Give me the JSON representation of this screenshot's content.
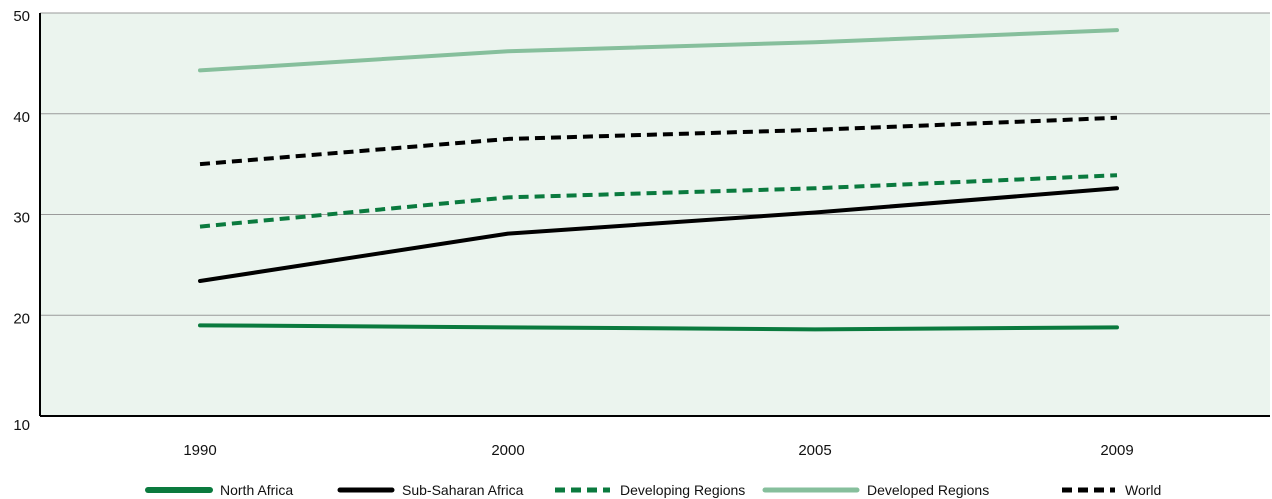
{
  "chart_data": {
    "type": "line",
    "title": "",
    "xlabel": "",
    "ylabel": "",
    "categories": [
      "1990",
      "2000",
      "2005",
      "2009"
    ],
    "ylim": [
      10,
      50
    ],
    "yticks": [
      10,
      20,
      30,
      40,
      50
    ],
    "grid": true,
    "legend_position": "bottom",
    "background_color": "#ebf4ee",
    "series": [
      {
        "name": "North Africa",
        "values": [
          19.0,
          18.8,
          18.6,
          18.8
        ],
        "color": "#0a7a3e",
        "dashed": false
      },
      {
        "name": "Sub-Saharan Africa",
        "values": [
          23.4,
          28.1,
          30.2,
          32.6
        ],
        "color": "#000000",
        "dashed": false
      },
      {
        "name": "Developing Regions",
        "values": [
          28.8,
          31.7,
          32.6,
          33.9
        ],
        "color": "#0a7a3e",
        "dashed": true
      },
      {
        "name": "Developed Regions",
        "values": [
          44.3,
          46.2,
          47.1,
          48.3
        ],
        "color": "#86bf9c",
        "dashed": false
      },
      {
        "name": "World",
        "values": [
          35.0,
          37.5,
          38.4,
          39.6
        ],
        "color": "#000000",
        "dashed": true
      }
    ]
  }
}
